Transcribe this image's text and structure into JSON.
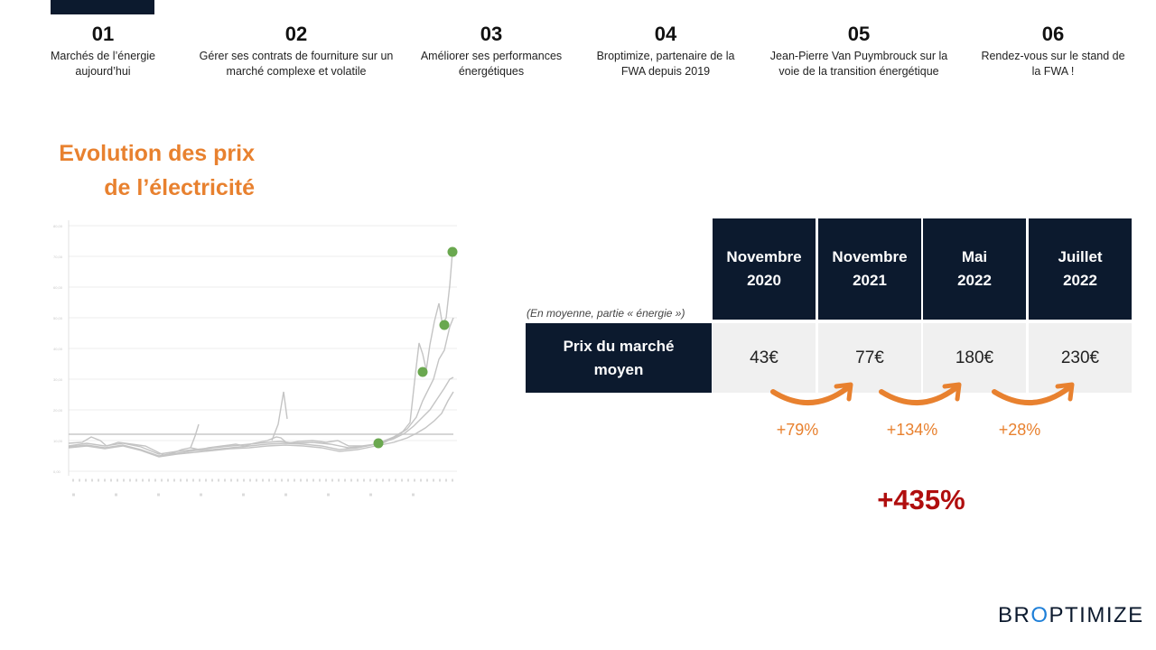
{
  "nav": {
    "items": [
      {
        "num": "01",
        "label": "Marchés de l’énergie aujourd’hui"
      },
      {
        "num": "02",
        "label": "Gérer ses contrats de fourniture sur un marché complexe et volatile"
      },
      {
        "num": "03",
        "label": "Améliorer ses performances énergétiques"
      },
      {
        "num": "04",
        "label": "Broptimize, partenaire de la FWA depuis 2019"
      },
      {
        "num": "05",
        "label": "Jean-Pierre Van Puymbrouck sur la voie de la transition énergétique"
      },
      {
        "num": "06",
        "label": "Rendez-vous sur le stand de la FWA !"
      }
    ]
  },
  "title": {
    "line1": "Evolution des prix",
    "line2": "de l’électricité"
  },
  "chart": {
    "marker_color": "#6aa84f",
    "line_color": "#bdbdbd"
  },
  "table": {
    "note": "(En moyenne, partie « énergie »)",
    "headers": [
      {
        "line1": "Novembre",
        "line2": "2020"
      },
      {
        "line1": "Novembre",
        "line2": "2021"
      },
      {
        "line1": "Mai",
        "line2": "2022"
      },
      {
        "line1": "Juillet",
        "line2": "2022"
      }
    ],
    "row_label": {
      "line1": "Prix du marché",
      "line2": "moyen"
    },
    "values": [
      "43€",
      "77€",
      "180€",
      "230€"
    ],
    "changes": [
      "+79%",
      "+134%",
      "+28%"
    ],
    "total": "+435%"
  },
  "logo": {
    "part1": "BR",
    "part2": "O",
    "part3": "PTIMIZE"
  },
  "colors": {
    "navy": "#0c1a2e",
    "orange": "#e8812f",
    "red": "#b00e0e",
    "green": "#6aa84f"
  }
}
